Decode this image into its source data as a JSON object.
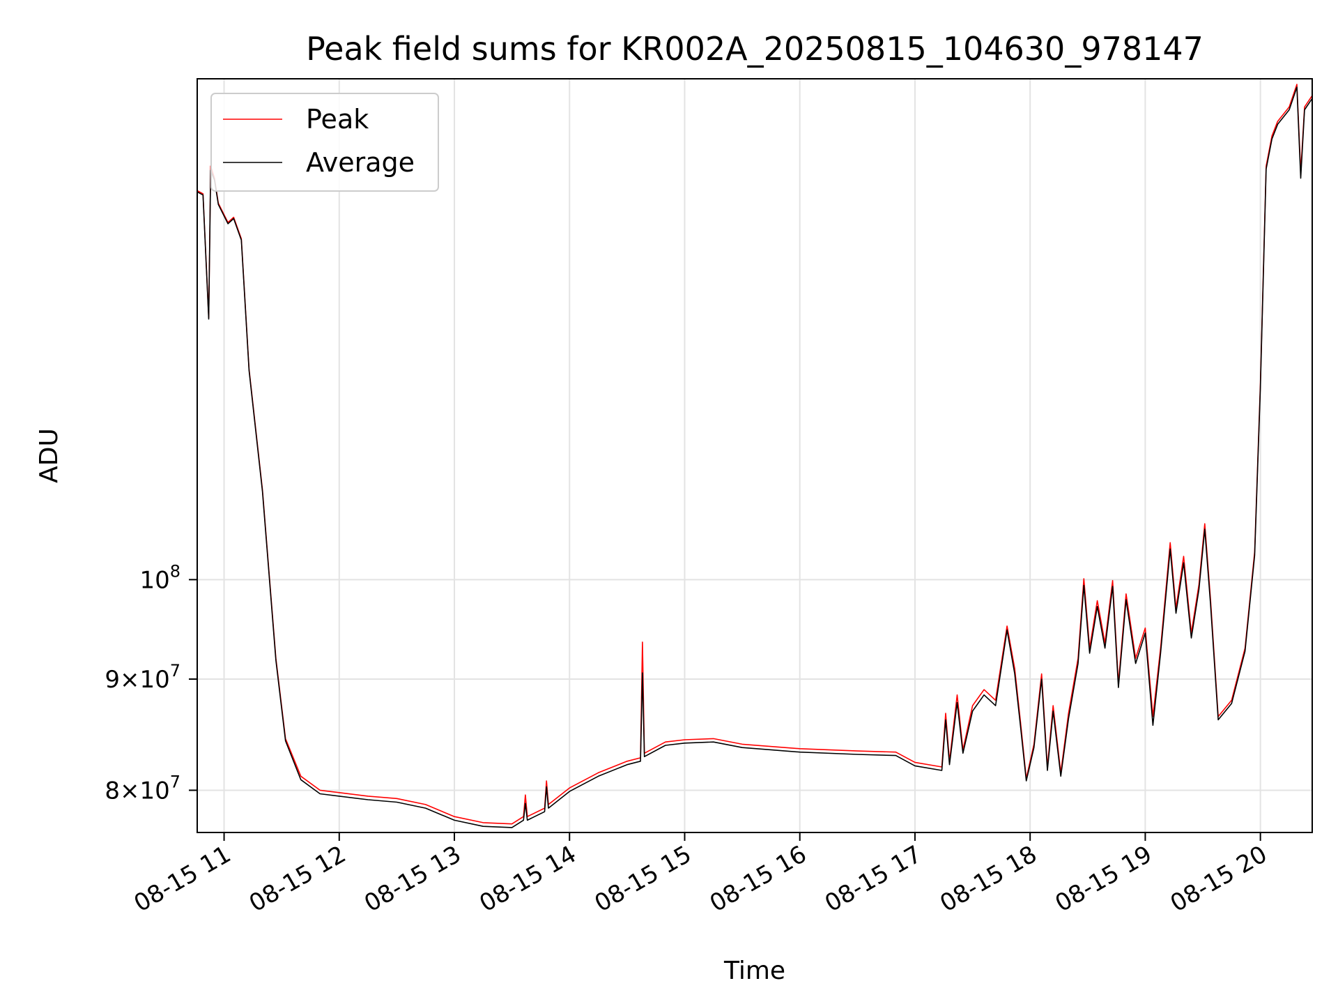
{
  "chart_data": {
    "type": "line",
    "title": "Peak field sums for KR002A_20250815_104630_978147",
    "xlabel": "Time",
    "ylabel": "ADU",
    "y_scale": "log",
    "grid": true,
    "legend_placement": "top-left",
    "xlim": [
      "2025-08-15 10:46",
      "2025-08-15 20:27"
    ],
    "ylim": [
      76500000,
      170000000
    ],
    "x_ticks": [
      "08-15 11",
      "08-15 12",
      "08-15 13",
      "08-15 14",
      "08-15 15",
      "08-15 16",
      "08-15 17",
      "08-15 18",
      "08-15 19",
      "08-15 20"
    ],
    "x_tick_values": [
      "2025-08-15 11:00",
      "2025-08-15 12:00",
      "2025-08-15 13:00",
      "2025-08-15 14:00",
      "2025-08-15 15:00",
      "2025-08-15 16:00",
      "2025-08-15 17:00",
      "2025-08-15 18:00",
      "2025-08-15 19:00",
      "2025-08-15 20:00"
    ],
    "y_ticks": [
      {
        "value": 80000000,
        "mantissa": "8",
        "base": "10",
        "exp": "7"
      },
      {
        "value": 90000000,
        "mantissa": "9",
        "base": "10",
        "exp": "7"
      },
      {
        "value": 100000000,
        "mantissa": "",
        "base": "10",
        "exp": "8"
      }
    ],
    "series": [
      {
        "name": "Peak",
        "color": "#ff0000",
        "points": [
          [
            "2025-08-15 10:46",
            151000000
          ],
          [
            "2025-08-15 10:49",
            150500000
          ],
          [
            "2025-08-15 10:52",
            132000000
          ],
          [
            "2025-08-15 10:53",
            155000000
          ],
          [
            "2025-08-15 10:55",
            153000000
          ],
          [
            "2025-08-15 10:57",
            149000000
          ],
          [
            "2025-08-15 11:02",
            146000000
          ],
          [
            "2025-08-15 11:05",
            146800000
          ],
          [
            "2025-08-15 11:09",
            143500000
          ],
          [
            "2025-08-15 11:13",
            125000000
          ],
          [
            "2025-08-15 11:20",
            110000000
          ],
          [
            "2025-08-15 11:27",
            92000000
          ],
          [
            "2025-08-15 11:32",
            84500000
          ],
          [
            "2025-08-15 11:40",
            81200000
          ],
          [
            "2025-08-15 11:50",
            80000000
          ],
          [
            "2025-08-15 12:00",
            79800000
          ],
          [
            "2025-08-15 12:15",
            79500000
          ],
          [
            "2025-08-15 12:30",
            79300000
          ],
          [
            "2025-08-15 12:45",
            78800000
          ],
          [
            "2025-08-15 13:00",
            77800000
          ],
          [
            "2025-08-15 13:15",
            77300000
          ],
          [
            "2025-08-15 13:30",
            77200000
          ],
          [
            "2025-08-15 13:36",
            77800000
          ],
          [
            "2025-08-15 13:37",
            79600000
          ],
          [
            "2025-08-15 13:38",
            77800000
          ],
          [
            "2025-08-15 13:47",
            78500000
          ],
          [
            "2025-08-15 13:48",
            80800000
          ],
          [
            "2025-08-15 13:49",
            78800000
          ],
          [
            "2025-08-15 14:00",
            80200000
          ],
          [
            "2025-08-15 14:15",
            81500000
          ],
          [
            "2025-08-15 14:30",
            82500000
          ],
          [
            "2025-08-15 14:37",
            82800000
          ],
          [
            "2025-08-15 14:38",
            93600000
          ],
          [
            "2025-08-15 14:39",
            83200000
          ],
          [
            "2025-08-15 14:50",
            84200000
          ],
          [
            "2025-08-15 15:00",
            84400000
          ],
          [
            "2025-08-15 15:15",
            84500000
          ],
          [
            "2025-08-15 15:30",
            84000000
          ],
          [
            "2025-08-15 16:00",
            83600000
          ],
          [
            "2025-08-15 16:30",
            83400000
          ],
          [
            "2025-08-15 16:50",
            83300000
          ],
          [
            "2025-08-15 17:00",
            82400000
          ],
          [
            "2025-08-15 17:14",
            82000000
          ],
          [
            "2025-08-15 17:16",
            86800000
          ],
          [
            "2025-08-15 17:18",
            82500000
          ],
          [
            "2025-08-15 17:22",
            88500000
          ],
          [
            "2025-08-15 17:25",
            83500000
          ],
          [
            "2025-08-15 17:30",
            87500000
          ],
          [
            "2025-08-15 17:36",
            89000000
          ],
          [
            "2025-08-15 17:42",
            88000000
          ],
          [
            "2025-08-15 17:48",
            95200000
          ],
          [
            "2025-08-15 17:52",
            91000000
          ],
          [
            "2025-08-15 17:55",
            86000000
          ],
          [
            "2025-08-15 17:58",
            81000000
          ],
          [
            "2025-08-15 18:02",
            84000000
          ],
          [
            "2025-08-15 18:06",
            90500000
          ],
          [
            "2025-08-15 18:09",
            82000000
          ],
          [
            "2025-08-15 18:12",
            87500000
          ],
          [
            "2025-08-15 18:16",
            81500000
          ],
          [
            "2025-08-15 18:20",
            86800000
          ],
          [
            "2025-08-15 18:25",
            92000000
          ],
          [
            "2025-08-15 18:28",
            100100000
          ],
          [
            "2025-08-15 18:31",
            93000000
          ],
          [
            "2025-08-15 18:35",
            97800000
          ],
          [
            "2025-08-15 18:39",
            93500000
          ],
          [
            "2025-08-15 18:43",
            99900000
          ],
          [
            "2025-08-15 18:46",
            89600000
          ],
          [
            "2025-08-15 18:50",
            98500000
          ],
          [
            "2025-08-15 18:55",
            92000000
          ],
          [
            "2025-08-15 19:00",
            95000000
          ],
          [
            "2025-08-15 19:04",
            86500000
          ],
          [
            "2025-08-15 19:08",
            93000000
          ],
          [
            "2025-08-15 19:13",
            104000000
          ],
          [
            "2025-08-15 19:16",
            97000000
          ],
          [
            "2025-08-15 19:20",
            102500000
          ],
          [
            "2025-08-15 19:24",
            94500000
          ],
          [
            "2025-08-15 19:28",
            99500000
          ],
          [
            "2025-08-15 19:31",
            106100000
          ],
          [
            "2025-08-15 19:34",
            98000000
          ],
          [
            "2025-08-15 19:38",
            86500000
          ],
          [
            "2025-08-15 19:45",
            88000000
          ],
          [
            "2025-08-15 19:52",
            93000000
          ],
          [
            "2025-08-15 19:57",
            103000000
          ],
          [
            "2025-08-15 20:00",
            123000000
          ],
          [
            "2025-08-15 20:03",
            155000000
          ],
          [
            "2025-08-15 20:06",
            160000000
          ],
          [
            "2025-08-15 20:09",
            162500000
          ],
          [
            "2025-08-15 20:15",
            165000000
          ],
          [
            "2025-08-15 20:19",
            169000000
          ],
          [
            "2025-08-15 20:21",
            154000000
          ],
          [
            "2025-08-15 20:23",
            165000000
          ],
          [
            "2025-08-15 20:27",
            167000000
          ]
        ]
      },
      {
        "name": "Average",
        "color": "#000000",
        "points": [
          [
            "2025-08-15 10:46",
            150800000
          ],
          [
            "2025-08-15 10:49",
            150300000
          ],
          [
            "2025-08-15 10:52",
            131800000
          ],
          [
            "2025-08-15 10:53",
            154300000
          ],
          [
            "2025-08-15 10:55",
            152700000
          ],
          [
            "2025-08-15 10:57",
            148800000
          ],
          [
            "2025-08-15 11:02",
            145800000
          ],
          [
            "2025-08-15 11:05",
            146600000
          ],
          [
            "2025-08-15 11:09",
            143300000
          ],
          [
            "2025-08-15 11:13",
            124800000
          ],
          [
            "2025-08-15 11:20",
            109800000
          ],
          [
            "2025-08-15 11:27",
            91800000
          ],
          [
            "2025-08-15 11:32",
            84300000
          ],
          [
            "2025-08-15 11:40",
            80900000
          ],
          [
            "2025-08-15 11:50",
            79700000
          ],
          [
            "2025-08-15 12:00",
            79500000
          ],
          [
            "2025-08-15 12:15",
            79200000
          ],
          [
            "2025-08-15 12:30",
            79000000
          ],
          [
            "2025-08-15 12:45",
            78500000
          ],
          [
            "2025-08-15 13:00",
            77500000
          ],
          [
            "2025-08-15 13:15",
            77000000
          ],
          [
            "2025-08-15 13:30",
            76900000
          ],
          [
            "2025-08-15 13:36",
            77500000
          ],
          [
            "2025-08-15 13:37",
            78900000
          ],
          [
            "2025-08-15 13:38",
            77500000
          ],
          [
            "2025-08-15 13:47",
            78200000
          ],
          [
            "2025-08-15 13:48",
            80300000
          ],
          [
            "2025-08-15 13:49",
            78500000
          ],
          [
            "2025-08-15 14:00",
            79900000
          ],
          [
            "2025-08-15 14:15",
            81200000
          ],
          [
            "2025-08-15 14:30",
            82200000
          ],
          [
            "2025-08-15 14:37",
            82500000
          ],
          [
            "2025-08-15 14:38",
            90600000
          ],
          [
            "2025-08-15 14:39",
            82900000
          ],
          [
            "2025-08-15 14:50",
            83900000
          ],
          [
            "2025-08-15 15:00",
            84100000
          ],
          [
            "2025-08-15 15:15",
            84200000
          ],
          [
            "2025-08-15 15:30",
            83700000
          ],
          [
            "2025-08-15 16:00",
            83300000
          ],
          [
            "2025-08-15 16:30",
            83100000
          ],
          [
            "2025-08-15 16:50",
            83000000
          ],
          [
            "2025-08-15 17:00",
            82100000
          ],
          [
            "2025-08-15 17:14",
            81700000
          ],
          [
            "2025-08-15 17:16",
            86200000
          ],
          [
            "2025-08-15 17:18",
            82200000
          ],
          [
            "2025-08-15 17:22",
            87800000
          ],
          [
            "2025-08-15 17:25",
            83200000
          ],
          [
            "2025-08-15 17:30",
            87000000
          ],
          [
            "2025-08-15 17:36",
            88500000
          ],
          [
            "2025-08-15 17:42",
            87500000
          ],
          [
            "2025-08-15 17:48",
            94800000
          ],
          [
            "2025-08-15 17:52",
            90500000
          ],
          [
            "2025-08-15 17:55",
            85600000
          ],
          [
            "2025-08-15 17:58",
            80800000
          ],
          [
            "2025-08-15 18:02",
            83700000
          ],
          [
            "2025-08-15 18:06",
            90000000
          ],
          [
            "2025-08-15 18:09",
            81700000
          ],
          [
            "2025-08-15 18:12",
            87000000
          ],
          [
            "2025-08-15 18:16",
            81200000
          ],
          [
            "2025-08-15 18:20",
            86300000
          ],
          [
            "2025-08-15 18:25",
            91500000
          ],
          [
            "2025-08-15 18:28",
            99400000
          ],
          [
            "2025-08-15 18:31",
            92500000
          ],
          [
            "2025-08-15 18:35",
            97200000
          ],
          [
            "2025-08-15 18:39",
            93000000
          ],
          [
            "2025-08-15 18:43",
            99300000
          ],
          [
            "2025-08-15 18:46",
            89200000
          ],
          [
            "2025-08-15 18:50",
            97900000
          ],
          [
            "2025-08-15 18:55",
            91500000
          ],
          [
            "2025-08-15 19:00",
            94500000
          ],
          [
            "2025-08-15 19:04",
            85700000
          ],
          [
            "2025-08-15 19:08",
            92500000
          ],
          [
            "2025-08-15 19:13",
            103300000
          ],
          [
            "2025-08-15 19:16",
            96500000
          ],
          [
            "2025-08-15 19:20",
            101800000
          ],
          [
            "2025-08-15 19:24",
            94000000
          ],
          [
            "2025-08-15 19:28",
            99000000
          ],
          [
            "2025-08-15 19:31",
            105500000
          ],
          [
            "2025-08-15 19:34",
            97500000
          ],
          [
            "2025-08-15 19:38",
            86200000
          ],
          [
            "2025-08-15 19:45",
            87700000
          ],
          [
            "2025-08-15 19:52",
            92700000
          ],
          [
            "2025-08-15 19:57",
            102600000
          ],
          [
            "2025-08-15 20:00",
            122500000
          ],
          [
            "2025-08-15 20:03",
            154500000
          ],
          [
            "2025-08-15 20:06",
            159500000
          ],
          [
            "2025-08-15 20:09",
            162000000
          ],
          [
            "2025-08-15 20:15",
            164500000
          ],
          [
            "2025-08-15 20:19",
            168500000
          ],
          [
            "2025-08-15 20:21",
            153000000
          ],
          [
            "2025-08-15 20:23",
            164500000
          ],
          [
            "2025-08-15 20:27",
            166500000
          ]
        ]
      }
    ]
  }
}
